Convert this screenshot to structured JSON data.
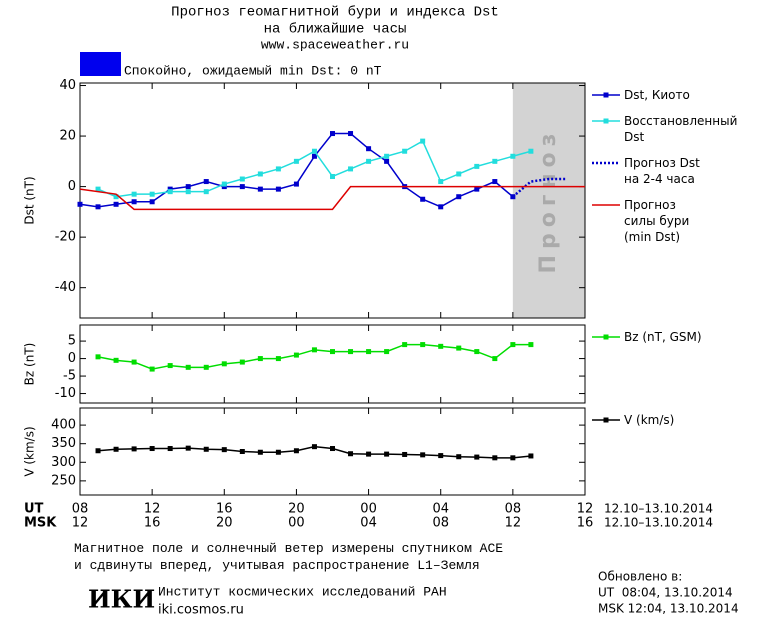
{
  "header": {
    "title": "Прогноз геомагнитной бури и индекса Dst",
    "subtitle": "на ближайшие часы",
    "url": "www.spaceweather.ru"
  },
  "status": {
    "text": "Спокойно, ожидаемый min Dst: 0 nT",
    "color": "#0000ee"
  },
  "chart_data": [
    {
      "type": "line",
      "ylabel": "Dst (nT)",
      "xlim": [
        0,
        28
      ],
      "ylim": [
        -52,
        41
      ],
      "yticks": [
        40,
        20,
        0,
        -20,
        -40
      ],
      "forecast_band": {
        "x": [
          24,
          28
        ],
        "label": "Прогноз",
        "color": "#d3d3d3"
      },
      "series": [
        {
          "name": "Dst, Киото",
          "color": "#0000cc",
          "style": "solid",
          "marker": "square",
          "x": [
            0,
            1,
            2,
            3,
            4,
            5,
            6,
            7,
            8,
            9,
            10,
            11,
            12,
            13,
            14,
            15,
            16,
            17,
            18,
            19,
            20,
            21,
            22,
            23,
            24
          ],
          "values": [
            -7,
            -8,
            -7,
            -6,
            -6,
            -1,
            0,
            2,
            0,
            0,
            -1,
            -1,
            1,
            12,
            21,
            21,
            15,
            10,
            0,
            -5,
            -8,
            -4,
            -1,
            2,
            -4
          ]
        },
        {
          "name": "Восстановленный\nDst",
          "color": "#22dddd",
          "style": "solid",
          "marker": "square",
          "x": [
            1,
            2,
            3,
            4,
            5,
            6,
            7,
            8,
            9,
            10,
            11,
            12,
            13,
            14,
            15,
            16,
            17,
            18,
            19,
            20,
            21,
            22,
            23,
            24,
            25
          ],
          "values": [
            -1,
            -4,
            -3,
            -3,
            -2,
            -2,
            -2,
            1,
            3,
            5,
            7,
            10,
            14,
            4,
            7,
            10,
            12,
            14,
            18,
            2,
            5,
            8,
            10,
            12,
            14
          ]
        },
        {
          "name": "Прогноз Dst\nна 2-4 часа",
          "color": "#0000cc",
          "style": "dotted",
          "marker": "none",
          "x": [
            24,
            25,
            26,
            27
          ],
          "values": [
            -4,
            2,
            3,
            3
          ]
        },
        {
          "name": "Прогноз\nсилы бури\n(min Dst)",
          "color": "#dd0000",
          "style": "solid",
          "marker": "none",
          "x": [
            0,
            2,
            3,
            14,
            15,
            28
          ],
          "values": [
            -1,
            -3,
            -9,
            -9,
            0,
            0
          ]
        }
      ]
    },
    {
      "type": "line",
      "ylabel": "Bz (nT)",
      "xlim": [
        0,
        28
      ],
      "ylim": [
        -12.7,
        9.6
      ],
      "yticks": [
        5,
        0,
        -5,
        -10
      ],
      "series": [
        {
          "name": "Bz (nT, GSM)",
          "color": "#00dd00",
          "style": "solid",
          "marker": "square",
          "x": [
            1,
            2,
            3,
            4,
            5,
            6,
            7,
            8,
            9,
            10,
            11,
            12,
            13,
            14,
            15,
            16,
            17,
            18,
            19,
            20,
            21,
            22,
            23,
            24,
            25
          ],
          "values": [
            0.5,
            -0.5,
            -1,
            -3,
            -2,
            -2.5,
            -2.5,
            -1.5,
            -1,
            0,
            0,
            1,
            2.5,
            2,
            2,
            2,
            2,
            4,
            4,
            3.5,
            3,
            2,
            0,
            4,
            4
          ]
        }
      ]
    },
    {
      "type": "line",
      "ylabel": "V (km/s)",
      "xlim": [
        0,
        28
      ],
      "ylim": [
        212,
        446
      ],
      "yticks": [
        400,
        350,
        300,
        250
      ],
      "xlabel": "UT",
      "x2label": "MSK",
      "date_label": "12.10–13.10.2014",
      "x2_date_label": "12.10–13.10.2014",
      "xticks": [
        {
          "value": 0,
          "label": "08"
        },
        {
          "value": 4,
          "label": "12"
        },
        {
          "value": 8,
          "label": "16"
        },
        {
          "value": 12,
          "label": "20"
        },
        {
          "value": 16,
          "label": "00"
        },
        {
          "value": 20,
          "label": "04"
        },
        {
          "value": 24,
          "label": "08"
        },
        {
          "value": 28,
          "label": "12"
        }
      ],
      "x2ticks": [
        {
          "value": 0,
          "label": "12"
        },
        {
          "value": 4,
          "label": "16"
        },
        {
          "value": 8,
          "label": "20"
        },
        {
          "value": 12,
          "label": "00"
        },
        {
          "value": 16,
          "label": "04"
        },
        {
          "value": 20,
          "label": "08"
        },
        {
          "value": 24,
          "label": "12"
        },
        {
          "value": 28,
          "label": "16"
        }
      ],
      "series": [
        {
          "name": "V (km/s)",
          "color": "#000000",
          "style": "solid",
          "marker": "square",
          "x": [
            1,
            2,
            3,
            4,
            5,
            6,
            7,
            8,
            9,
            10,
            11,
            12,
            13,
            14,
            15,
            16,
            17,
            18,
            19,
            20,
            21,
            22,
            23,
            24,
            25
          ],
          "values": [
            331,
            335,
            336,
            337,
            337,
            338,
            335,
            334,
            329,
            327,
            327,
            331,
            342,
            337,
            323,
            322,
            322,
            321,
            320,
            318,
            315,
            314,
            312,
            312,
            317
          ]
        }
      ]
    }
  ],
  "footer": {
    "note": "Магнитное поле и солнечный ветер измерены спутником ACE\nи сдвинуты вперед, учитывая распространение L1–Земля",
    "logo": "ИКИ",
    "institute": "Институт космических исследований РАН",
    "site": "iki.cosmos.ru",
    "updated_title": "Обновлено в:",
    "updated_ut": "UT  08:04, 13.10.2014",
    "updated_msk": "MSK 12:04, 13.10.2014"
  }
}
